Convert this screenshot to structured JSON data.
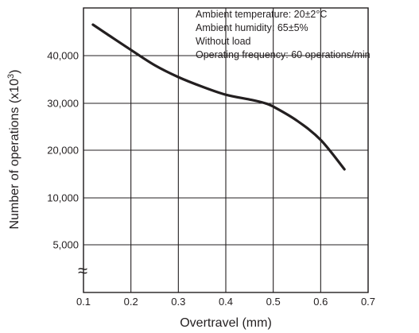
{
  "chart_data": {
    "type": "line",
    "xlabel": "Overtravel (mm)",
    "ylabel": "Number of operations  (x10",
    "ylabel_exponent": "3",
    "ylabel_close": ")",
    "x_ticks": [
      "0.1",
      "0.2",
      "0.3",
      "0.4",
      "0.5",
      "0.6",
      "0.7"
    ],
    "xlim": [
      0.1,
      0.7
    ],
    "y_ticks": [
      "5,000",
      "10,000",
      "20,000",
      "30,000",
      "40,000"
    ],
    "y_axis_break": "≈",
    "grid": true,
    "annotations": [
      "Ambient temperature: 20±2°C",
      "Ambient humidity: 65±5%",
      "Without load",
      "Operating frequency: 60 operations/min"
    ],
    "series": [
      {
        "x": [
          0.12,
          0.15,
          0.2,
          0.25,
          0.3,
          0.35,
          0.4,
          0.45,
          0.48,
          0.5,
          0.55,
          0.6,
          0.65
        ],
        "y": [
          46500,
          44500,
          41200,
          38000,
          35500,
          33500,
          31800,
          30800,
          30100,
          29300,
          26300,
          22200,
          16000
        ]
      }
    ]
  }
}
